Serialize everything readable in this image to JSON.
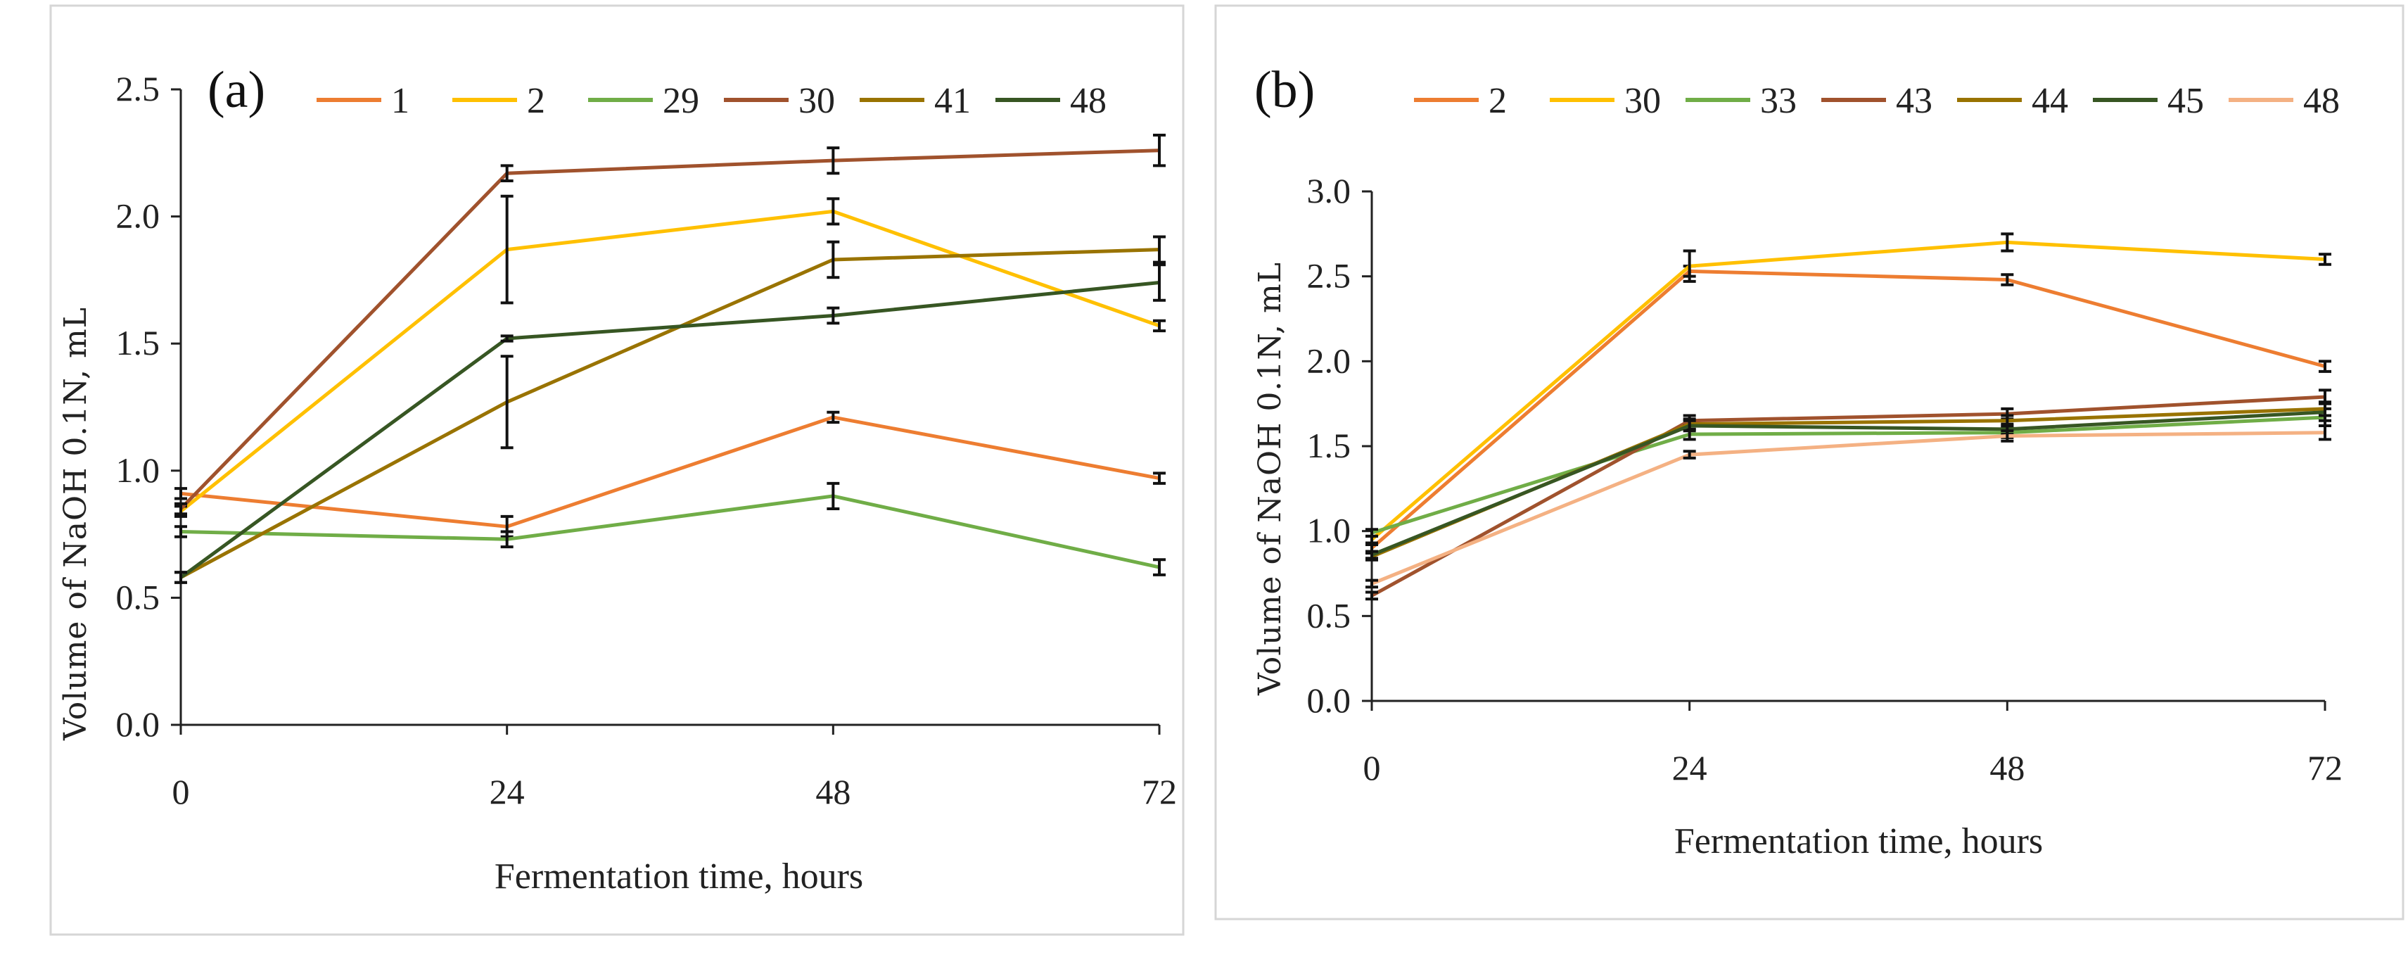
{
  "chart_data": [
    {
      "panel": "(a)",
      "type": "line",
      "xlabel": "Fermentation time, hours",
      "ylabel": "Volume of NaOH 0.1N, mL",
      "x": [
        0,
        24,
        48,
        72
      ],
      "xticks": [
        "0",
        "24",
        "48",
        "72"
      ],
      "ylim": [
        0,
        2.5
      ],
      "yticks": [
        "0.0",
        "0.5",
        "1.0",
        "1.5",
        "2.0",
        "2.5"
      ],
      "legend_position": "top",
      "series": [
        {
          "name": "1",
          "color": "#ED7D31",
          "values": [
            0.91,
            0.78,
            1.21,
            0.97
          ],
          "errors": [
            0.02,
            0.04,
            0.02,
            0.02
          ]
        },
        {
          "name": "2",
          "color": "#FFC000",
          "values": [
            0.84,
            1.87,
            2.02,
            1.57
          ],
          "errors": [
            0.02,
            0.21,
            0.05,
            0.02
          ]
        },
        {
          "name": "29",
          "color": "#70AD47",
          "values": [
            0.76,
            0.73,
            0.9,
            0.62
          ],
          "errors": [
            0.02,
            0.03,
            0.05,
            0.03
          ]
        },
        {
          "name": "30",
          "color": "#A0522D",
          "values": [
            0.85,
            2.17,
            2.22,
            2.26
          ],
          "errors": [
            0.02,
            0.03,
            0.05,
            0.06
          ]
        },
        {
          "name": "41",
          "color": "#997300",
          "values": [
            0.58,
            1.27,
            1.83,
            1.87
          ],
          "errors": [
            0.02,
            0.18,
            0.07,
            0.05
          ]
        },
        {
          "name": "48",
          "color": "#375623",
          "values": [
            0.58,
            1.52,
            1.61,
            1.74
          ],
          "errors": [
            0.02,
            0.01,
            0.03,
            0.07
          ]
        }
      ]
    },
    {
      "panel": "(b)",
      "type": "line",
      "xlabel": "Fermentation time, hours",
      "ylabel": "Volume of NaOH 0.1N, mL",
      "x": [
        0,
        24,
        48,
        72
      ],
      "xticks": [
        "0",
        "24",
        "48",
        "72"
      ],
      "ylim": [
        0,
        3.0
      ],
      "yticks": [
        "0.0",
        "0.5",
        "1.0",
        "1.5",
        "2.0",
        "2.5",
        "3.0"
      ],
      "legend_position": "top",
      "series": [
        {
          "name": "2",
          "color": "#ED7D31",
          "values": [
            0.9,
            2.53,
            2.48,
            1.97
          ],
          "errors": [
            0.02,
            0.03,
            0.03,
            0.03
          ]
        },
        {
          "name": "30",
          "color": "#FFC000",
          "values": [
            0.95,
            2.56,
            2.7,
            2.6
          ],
          "errors": [
            0.02,
            0.09,
            0.05,
            0.03
          ]
        },
        {
          "name": "33",
          "color": "#70AD47",
          "values": [
            0.99,
            1.57,
            1.58,
            1.67
          ],
          "errors": [
            0.02,
            0.03,
            0.03,
            0.05
          ]
        },
        {
          "name": "43",
          "color": "#A0522D",
          "values": [
            0.62,
            1.65,
            1.69,
            1.79
          ],
          "errors": [
            0.02,
            0.03,
            0.03,
            0.04
          ]
        },
        {
          "name": "44",
          "color": "#997300",
          "values": [
            0.85,
            1.63,
            1.65,
            1.72
          ],
          "errors": [
            0.02,
            0.03,
            0.03,
            0.04
          ]
        },
        {
          "name": "45",
          "color": "#375623",
          "values": [
            0.86,
            1.62,
            1.6,
            1.7
          ],
          "errors": [
            0.02,
            0.03,
            0.03,
            0.05
          ]
        },
        {
          "name": "48",
          "color": "#F4B183",
          "values": [
            0.69,
            1.45,
            1.56,
            1.58
          ],
          "errors": [
            0.02,
            0.02,
            0.03,
            0.04
          ]
        }
      ]
    }
  ]
}
